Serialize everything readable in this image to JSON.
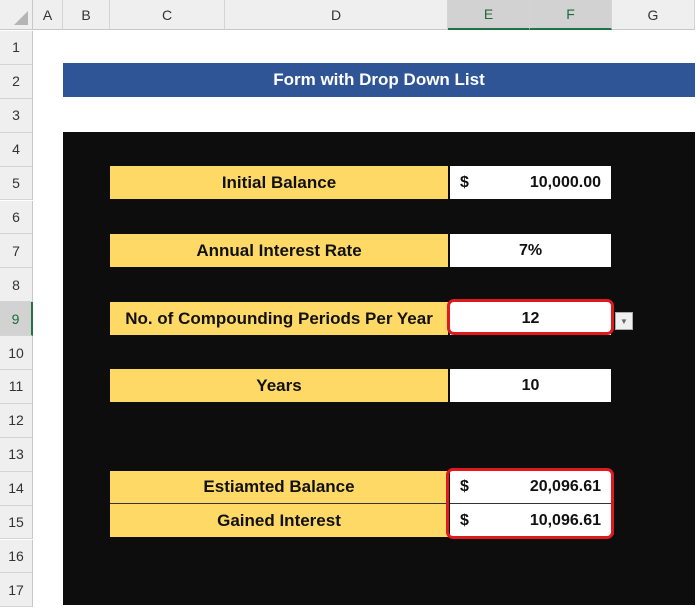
{
  "columns": [
    "A",
    "B",
    "C",
    "D",
    "E",
    "F",
    "G"
  ],
  "rows": [
    "1",
    "2",
    "3",
    "4",
    "5",
    "6",
    "7",
    "8",
    "9",
    "10",
    "11",
    "12",
    "13",
    "14",
    "15",
    "16",
    "17"
  ],
  "title": "Form with Drop Down List",
  "form": {
    "initial_balance": {
      "label": "Initial Balance",
      "currency": "$",
      "value": "10,000.00"
    },
    "annual_rate": {
      "label": "Annual Interest Rate",
      "value": "7%"
    },
    "periods": {
      "label": "No. of Compounding Periods Per Year",
      "value": "12"
    },
    "years": {
      "label": "Years",
      "value": "10"
    },
    "estimated": {
      "label": "Estiamted Balance",
      "currency": "$",
      "value": "20,096.61"
    },
    "gained": {
      "label": "Gained Interest",
      "currency": "$",
      "value": "10,096.61"
    }
  },
  "colors": {
    "banner": "#2f5597",
    "label_fill": "#ffd966",
    "highlight": "#e0191f"
  }
}
